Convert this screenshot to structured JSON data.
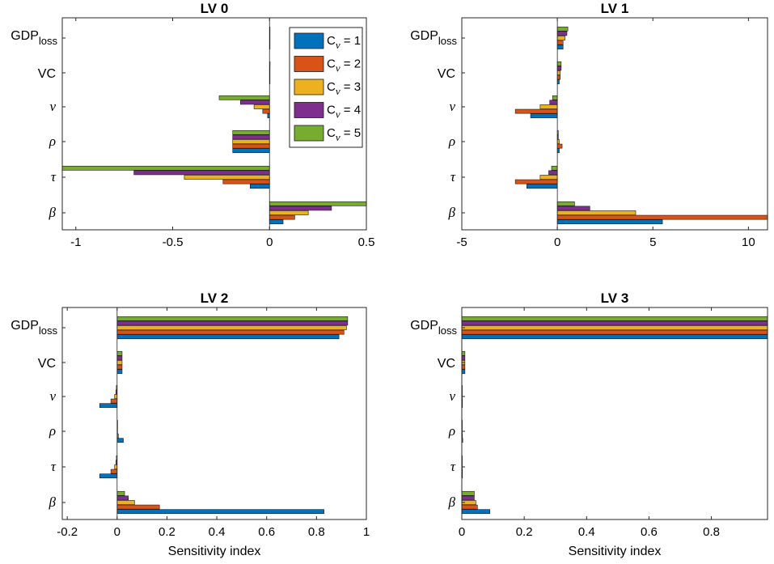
{
  "colors": [
    "#0072bd",
    "#d95319",
    "#edb120",
    "#7e2f8e",
    "#77ac30"
  ],
  "chart_data": [
    {
      "type": "bar",
      "orientation": "horizontal",
      "title": "LV 0",
      "xlabel": "",
      "xlim": [
        -1.07,
        0.5
      ],
      "xticks": [
        -1,
        -0.5,
        0,
        0.5
      ],
      "xtick_labels": [
        "-1",
        "-0.5",
        "0",
        "0.5"
      ],
      "categories": [
        "β",
        "τ",
        "ρ",
        "ν",
        "VC",
        "GDP_loss"
      ],
      "series": [
        {
          "name": "Cν = 1",
          "values": [
            0.07,
            -0.1,
            -0.19,
            -0.01,
            0.001,
            0.0
          ]
        },
        {
          "name": "Cν = 2",
          "values": [
            0.13,
            -0.24,
            -0.19,
            -0.035,
            0.002,
            0.0
          ]
        },
        {
          "name": "Cν = 3",
          "values": [
            0.2,
            -0.44,
            -0.19,
            -0.08,
            0.002,
            0.0
          ]
        },
        {
          "name": "Cν = 4",
          "values": [
            0.32,
            -0.7,
            -0.19,
            -0.15,
            0.002,
            0.0
          ]
        },
        {
          "name": "Cν = 5",
          "values": [
            0.5,
            -1.07,
            -0.19,
            -0.26,
            0.003,
            0.0
          ]
        }
      ],
      "legend": "top-right"
    },
    {
      "type": "bar",
      "orientation": "horizontal",
      "title": "LV 1",
      "xlabel": "",
      "xlim": [
        -5,
        11
      ],
      "xticks": [
        -5,
        0,
        5,
        10
      ],
      "xtick_labels": [
        "-5",
        "0",
        "5",
        "10"
      ],
      "categories": [
        "β",
        "τ",
        "ρ",
        "ν",
        "VC",
        "GDP_loss"
      ],
      "series": [
        {
          "name": "Cν = 1",
          "values": [
            5.5,
            -1.6,
            0.1,
            -1.4,
            0.1,
            0.3
          ]
        },
        {
          "name": "Cν = 2",
          "values": [
            11.0,
            -2.2,
            0.25,
            -2.2,
            0.15,
            0.3
          ]
        },
        {
          "name": "Cν = 3",
          "values": [
            4.1,
            -0.9,
            0.1,
            -0.9,
            0.15,
            0.4
          ]
        },
        {
          "name": "Cν = 4",
          "values": [
            1.7,
            -0.45,
            0.05,
            -0.4,
            0.2,
            0.5
          ]
        },
        {
          "name": "Cν = 5",
          "values": [
            0.9,
            -0.3,
            0.05,
            -0.25,
            0.2,
            0.55
          ]
        }
      ]
    },
    {
      "type": "bar",
      "orientation": "horizontal",
      "title": "LV 2",
      "xlabel": "Sensitivity index",
      "xlim": [
        -0.22,
        1.0
      ],
      "xticks": [
        -0.2,
        0,
        0.2,
        0.4,
        0.6,
        0.8,
        1
      ],
      "xtick_labels": [
        "-0.2",
        "0",
        "0.2",
        "0.4",
        "0.6",
        "0.8",
        "1"
      ],
      "categories": [
        "β",
        "τ",
        "ρ",
        "ν",
        "VC",
        "GDP_loss"
      ],
      "series": [
        {
          "name": "Cν = 1",
          "values": [
            0.83,
            -0.07,
            0.025,
            -0.07,
            0.02,
            0.89
          ]
        },
        {
          "name": "Cν = 2",
          "values": [
            0.17,
            -0.025,
            0.005,
            -0.025,
            0.02,
            0.91
          ]
        },
        {
          "name": "Cν = 3",
          "values": [
            0.07,
            -0.01,
            0.002,
            -0.01,
            0.02,
            0.92
          ]
        },
        {
          "name": "Cν = 4",
          "values": [
            0.045,
            -0.005,
            0.001,
            -0.005,
            0.02,
            0.925
          ]
        },
        {
          "name": "Cν = 5",
          "values": [
            0.03,
            -0.003,
            0.001,
            -0.003,
            0.02,
            0.925
          ]
        }
      ]
    },
    {
      "type": "bar",
      "orientation": "horizontal",
      "title": "LV 3",
      "xlabel": "Sensitivity index",
      "xlim": [
        0,
        0.98
      ],
      "xticks": [
        0,
        0.2,
        0.4,
        0.6,
        0.8
      ],
      "xtick_labels": [
        "0",
        "0.2",
        "0.4",
        "0.6",
        "0.8"
      ],
      "categories": [
        "β",
        "τ",
        "ρ",
        "ν",
        "VC",
        "GDP_loss"
      ],
      "series": [
        {
          "name": "Cν = 1",
          "values": [
            0.09,
            0.002,
            0.003,
            0.002,
            0.01,
            0.98
          ]
        },
        {
          "name": "Cν = 2",
          "values": [
            0.05,
            0.002,
            0.002,
            0.002,
            0.01,
            0.98
          ]
        },
        {
          "name": "Cν = 3",
          "values": [
            0.045,
            0.001,
            0.001,
            0.001,
            0.01,
            0.98
          ]
        },
        {
          "name": "Cν = 4",
          "values": [
            0.04,
            0.001,
            0.001,
            0.001,
            0.01,
            0.98
          ]
        },
        {
          "name": "Cν = 5",
          "values": [
            0.04,
            0.001,
            0.001,
            0.001,
            0.01,
            0.98
          ]
        }
      ]
    }
  ],
  "legend": {
    "items": [
      {
        "prefix": "C",
        "sub": "ν",
        "suffix": " = 1"
      },
      {
        "prefix": "C",
        "sub": "ν",
        "suffix": " = 2"
      },
      {
        "prefix": "C",
        "sub": "ν",
        "suffix": " = 3"
      },
      {
        "prefix": "C",
        "sub": "ν",
        "suffix": " = 4"
      },
      {
        "prefix": "C",
        "sub": "ν",
        "suffix": " = 5"
      }
    ]
  },
  "category_labels": [
    {
      "text": "β",
      "style": "greek"
    },
    {
      "text": "τ",
      "style": "greek"
    },
    {
      "text": "ρ",
      "style": "greek"
    },
    {
      "text": "ν",
      "style": "greek"
    },
    {
      "text": "VC",
      "style": "plain"
    },
    {
      "text": "GDP",
      "sub": "loss",
      "style": "plain"
    }
  ]
}
